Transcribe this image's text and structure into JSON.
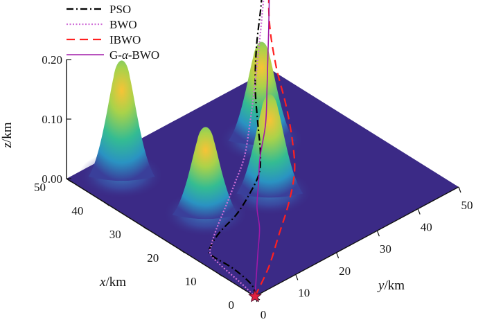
{
  "chart_data": {
    "type": "surface3d",
    "title": "",
    "xlabel": "x/km",
    "ylabel": "y/km",
    "zlabel": "z/km",
    "xlim": [
      0,
      50
    ],
    "ylim": [
      0,
      50
    ],
    "zlim": [
      0,
      0.2
    ],
    "x_ticks": [
      "0",
      "10",
      "20",
      "30",
      "40",
      "50"
    ],
    "y_ticks": [
      "0",
      "10",
      "20",
      "30",
      "40",
      "50"
    ],
    "z_ticks": [
      "0.00",
      "0.10",
      "0.20"
    ],
    "legend_position": "top-left",
    "colors": {
      "surface_base": "#3b2a86",
      "peak_low": "#2aa4c4",
      "peak_mid": "#39c28a",
      "peak_top": "#f2b43a",
      "PSO": "#000000",
      "BWO": "#d070d8",
      "IBWO": "#ff2020",
      "G-α-BWO": "#a01aa8",
      "marker": "#e02040"
    },
    "peaks": [
      {
        "x": 44,
        "y": 8,
        "height": 0.2
      },
      {
        "x": 35,
        "y": 34,
        "height": 0.17
      },
      {
        "x": 22,
        "y": 24,
        "height": 0.17
      },
      {
        "x": 25,
        "y": 11,
        "height": 0.15
      }
    ],
    "start": {
      "x": 0,
      "y": 0,
      "z": 0
    },
    "goal": {
      "x": 50,
      "y": 50,
      "z": 0.2
    },
    "series": [
      {
        "name": "PSO",
        "style": "dash-dot",
        "points": [
          [
            0,
            0
          ],
          [
            3,
            2
          ],
          [
            9,
            3
          ],
          [
            15,
            3
          ],
          [
            17,
            5
          ],
          [
            19,
            9
          ],
          [
            21,
            15
          ],
          [
            24,
            21
          ],
          [
            27,
            26
          ],
          [
            31,
            30
          ],
          [
            36,
            34
          ],
          [
            41,
            38
          ],
          [
            45,
            42
          ],
          [
            48,
            46
          ],
          [
            50,
            48
          ],
          [
            50,
            50
          ]
        ]
      },
      {
        "name": "BWO",
        "style": "dotted",
        "points": [
          [
            0,
            0
          ],
          [
            5,
            1
          ],
          [
            11,
            2
          ],
          [
            15,
            3
          ],
          [
            17,
            5
          ],
          [
            20,
            9
          ],
          [
            24,
            15
          ],
          [
            28,
            21
          ],
          [
            32,
            27
          ],
          [
            37,
            33
          ],
          [
            42,
            39
          ],
          [
            46,
            44
          ],
          [
            49,
            48
          ],
          [
            50,
            50
          ]
        ]
      },
      {
        "name": "IBWO",
        "style": "dashed",
        "points": [
          [
            0,
            0
          ],
          [
            5,
            8
          ],
          [
            11,
            16
          ],
          [
            17,
            24
          ],
          [
            23,
            31
          ],
          [
            29,
            36
          ],
          [
            35,
            40
          ],
          [
            41,
            43
          ],
          [
            46,
            46
          ],
          [
            50,
            50
          ]
        ]
      },
      {
        "name": "G-α-BWO",
        "style": "solid",
        "points": [
          [
            0,
            0
          ],
          [
            5,
            5
          ],
          [
            10,
            10
          ],
          [
            15,
            15
          ],
          [
            20,
            19
          ],
          [
            25,
            24
          ],
          [
            30,
            29
          ],
          [
            35,
            35
          ],
          [
            40,
            40
          ],
          [
            45,
            45
          ],
          [
            50,
            50
          ]
        ]
      }
    ]
  }
}
